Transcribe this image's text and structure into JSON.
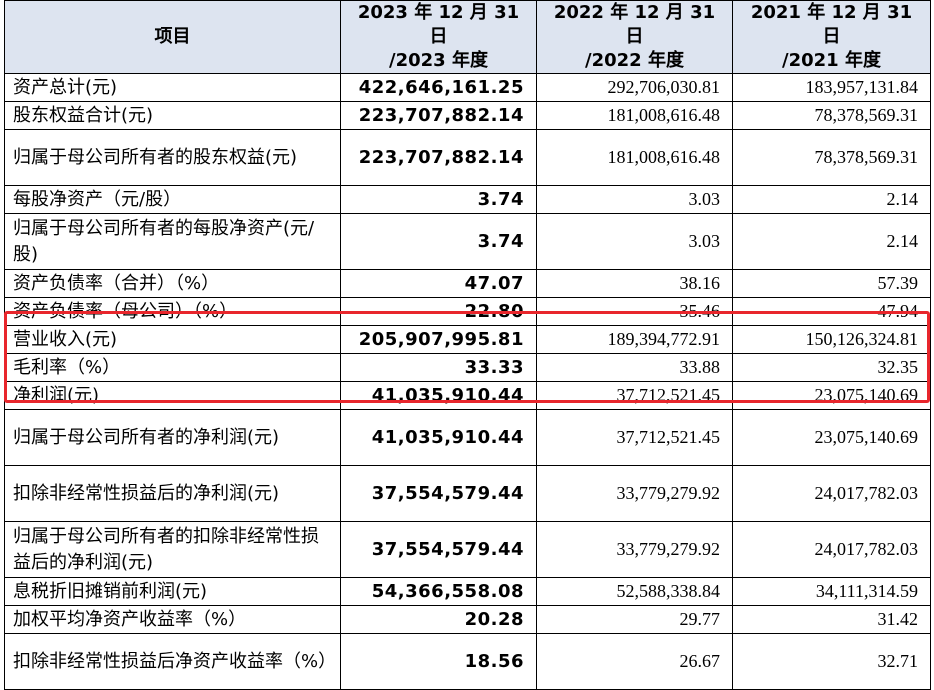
{
  "header": {
    "col_item": "项目",
    "col_2023": [
      "2023 年 12 月 31 日",
      "/2023 年度"
    ],
    "col_2022": [
      "2022 年 12 月 31 日",
      "/2022 年度"
    ],
    "col_2021": [
      "2021 年 12 月 31 日",
      "/2021 年度"
    ]
  },
  "rows": [
    {
      "label": "资产总计(元)",
      "v2023": "422,646,161.25",
      "v2022": "292,706,030.81",
      "v2021": "183,957,131.84",
      "tall": false
    },
    {
      "label": "股东权益合计(元)",
      "v2023": "223,707,882.14",
      "v2022": "181,008,616.48",
      "v2021": "78,378,569.31",
      "tall": false
    },
    {
      "label": "归属于母公司所有者的股东权益(元)",
      "v2023": "223,707,882.14",
      "v2022": "181,008,616.48",
      "v2021": "78,378,569.31",
      "tall": true
    },
    {
      "label": "每股净资产（元/股）",
      "v2023": "3.74",
      "v2022": "3.03",
      "v2021": "2.14",
      "tall": false
    },
    {
      "label": "归属于母公司所有者的每股净资产(元/股)",
      "v2023": "3.74",
      "v2022": "3.03",
      "v2021": "2.14",
      "tall": true
    },
    {
      "label": "资产负债率（合并）（%）",
      "v2023": "47.07",
      "v2022": "38.16",
      "v2021": "57.39",
      "tall": false
    },
    {
      "label": "资产负债率（母公司）（%）",
      "v2023": "22.80",
      "v2022": "35.46",
      "v2021": "47.94",
      "tall": false
    },
    {
      "label": "营业收入(元)",
      "v2023": "205,907,995.81",
      "v2022": "189,394,772.91",
      "v2021": "150,126,324.81",
      "tall": false
    },
    {
      "label": "毛利率（%）",
      "v2023": "33.33",
      "v2022": "33.88",
      "v2021": "32.35",
      "tall": false
    },
    {
      "label": "净利润(元)",
      "v2023": "41,035,910.44",
      "v2022": "37,712,521.45",
      "v2021": "23,075,140.69",
      "tall": false
    },
    {
      "label": "归属于母公司所有者的净利润(元)",
      "v2023": "41,035,910.44",
      "v2022": "37,712,521.45",
      "v2021": "23,075,140.69",
      "tall": true
    },
    {
      "label": "扣除非经常性损益后的净利润(元)",
      "v2023": "37,554,579.44",
      "v2022": "33,779,279.92",
      "v2021": "24,017,782.03",
      "tall": true
    },
    {
      "label": "归属于母公司所有者的扣除非经常性损益后的净利润(元)",
      "v2023": "37,554,579.44",
      "v2022": "33,779,279.92",
      "v2021": "24,017,782.03",
      "tall": true
    },
    {
      "label": "息税折旧摊销前利润(元)",
      "v2023": "54,366,558.08",
      "v2022": "52,588,338.84",
      "v2021": "34,111,314.59",
      "tall": false
    },
    {
      "label": "加权平均净资产收益率（%）",
      "v2023": "20.28",
      "v2022": "29.77",
      "v2021": "31.42",
      "tall": false
    },
    {
      "label": "扣除非经常性损益后净资产收益率（%）",
      "v2023": "18.56",
      "v2022": "26.67",
      "v2021": "32.71",
      "tall": true
    }
  ],
  "highlight_color": "#e8262c"
}
